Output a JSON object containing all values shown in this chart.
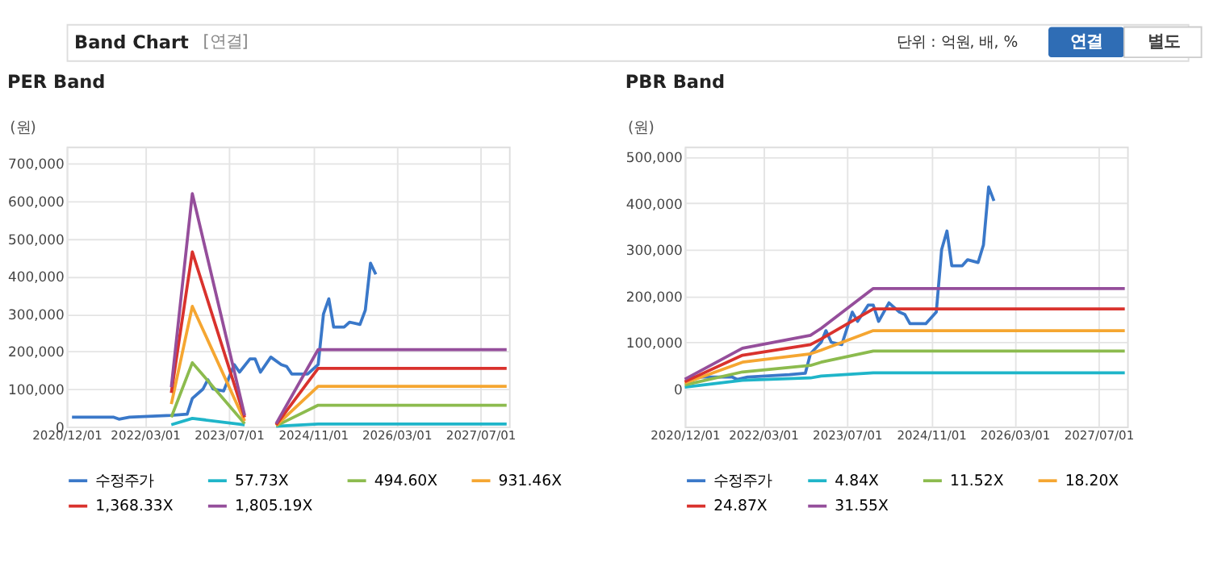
{
  "chart_data": [
    {
      "type": "line",
      "title": "PER Band",
      "ylabel": "(원)",
      "annotations": [
        "Band Chart",
        "[연결]",
        "단위 : 억원, 배, %",
        "연결",
        "별도"
      ],
      "xlim": [
        "2020-12-01",
        "2027-12-15"
      ],
      "xticks": [
        {
          "value": "2020-12-01",
          "label": "2020/12/01"
        },
        {
          "value": "2022-03-01",
          "label": "2022/03/01"
        },
        {
          "value": "2023-07-01",
          "label": "2023/07/01"
        },
        {
          "value": "2024-11-01",
          "label": "2024/11/01"
        },
        {
          "value": "2026-03-01",
          "label": "2026/03/01"
        },
        {
          "value": "2027-07-01",
          "label": "2027/07/01"
        }
      ],
      "ylim": [
        0,
        745000
      ],
      "yticks": [
        0,
        {
          "value": 100000,
          "label": "100,000"
        },
        {
          "value": 200000,
          "label": "200,000"
        },
        {
          "value": 300000,
          "label": "300,000"
        },
        {
          "value": 400000,
          "label": "400,000"
        },
        {
          "value": 500000,
          "label": "500,000"
        },
        {
          "value": 600000,
          "label": "600,000"
        },
        {
          "value": 700000,
          "label": "700,000"
        }
      ],
      "grid": true,
      "legend": "bottom",
      "series": [
        {
          "name": "수정주가",
          "color": "#3a78c9",
          "x": [
            "2021-01",
            "2021-09",
            "2021-10",
            "2021-12",
            "2022-08",
            "2022-11",
            "2022-12",
            "2023-02",
            "2023-03",
            "2023-04",
            "2023-06",
            "2023-08",
            "2023-09",
            "2023-11",
            "2023-12",
            "2024-01",
            "2024-03",
            "2024-05",
            "2024-06",
            "2024-07",
            "2024-10",
            "2024-12",
            "2025-01",
            "2025-02",
            "2025-03",
            "2025-05",
            "2025-06",
            "2025-08",
            "2025-09",
            "2025-10",
            "2025-11"
          ],
          "values": [
            25000,
            25000,
            20000,
            25000,
            30000,
            33000,
            75000,
            100000,
            125000,
            100000,
            95000,
            165000,
            145000,
            180000,
            180000,
            145000,
            185000,
            165000,
            160000,
            140000,
            140000,
            165000,
            300000,
            340000,
            265000,
            265000,
            278000,
            272000,
            310000,
            435000,
            405000
          ]
        },
        {
          "name": "57.73X",
          "color": "#1fb5c9",
          "x": [
            "2022-08",
            "2022-12",
            "2023-10",
            "2024-01",
            "2024-04",
            "2024-12",
            "2027-12"
          ],
          "values": [
            5000,
            22000,
            5000,
            null,
            1000,
            7000,
            7000
          ]
        },
        {
          "name": "494.60X",
          "color": "#8cbb4e",
          "x": [
            "2022-08",
            "2022-12",
            "2023-10",
            "2024-01",
            "2024-04",
            "2024-12",
            "2027-12"
          ],
          "values": [
            25000,
            170000,
            8000,
            null,
            2000,
            57000,
            57000
          ]
        },
        {
          "name": "931.46X",
          "color": "#f5a631",
          "x": [
            "2022-08",
            "2022-12",
            "2023-10",
            "2024-01",
            "2024-04",
            "2024-12",
            "2027-12"
          ],
          "values": [
            60000,
            320000,
            15000,
            null,
            3000,
            107000,
            107000
          ]
        },
        {
          "name": "1,368.33X",
          "color": "#d9322d",
          "x": [
            "2022-08",
            "2022-12",
            "2023-10",
            "2024-01",
            "2024-04",
            "2024-12",
            "2027-12"
          ],
          "values": [
            90000,
            465000,
            25000,
            null,
            5000,
            155000,
            155000
          ]
        },
        {
          "name": "1,805.19X",
          "color": "#954e9b",
          "x": [
            "2022-08",
            "2022-12",
            "2023-10",
            "2024-01",
            "2024-04",
            "2024-12",
            "2027-12"
          ],
          "values": [
            105000,
            620000,
            30000,
            null,
            8000,
            205000,
            205000
          ]
        }
      ]
    },
    {
      "type": "line",
      "title": "PBR Band",
      "ylabel": "(원)",
      "xlim": [
        "2020-12-01",
        "2027-12-15"
      ],
      "xticks": [
        {
          "value": "2020-12-01",
          "label": "2020/12/01"
        },
        {
          "value": "2022-03-01",
          "label": "2022/03/01"
        },
        {
          "value": "2023-07-01",
          "label": "2023/07/01"
        },
        {
          "value": "2024-11-01",
          "label": "2024/11/01"
        },
        {
          "value": "2026-03-01",
          "label": "2026/03/01"
        },
        {
          "value": "2027-07-01",
          "label": "2027/07/01"
        }
      ],
      "ylim": [
        -82000,
        522000
      ],
      "yticks": [
        0,
        {
          "value": 100000,
          "label": "100,000"
        },
        {
          "value": 200000,
          "label": "200,000"
        },
        {
          "value": 300000,
          "label": "300,000"
        },
        {
          "value": 400000,
          "label": "400,000"
        },
        {
          "value": 500000,
          "label": "500,000"
        }
      ],
      "grid": true,
      "legend": "bottom",
      "series": [
        {
          "name": "수정주가",
          "color": "#3a78c9",
          "x": [
            "2021-01",
            "2021-09",
            "2021-10",
            "2021-12",
            "2022-08",
            "2022-11",
            "2022-12",
            "2023-02",
            "2023-03",
            "2023-04",
            "2023-06",
            "2023-08",
            "2023-09",
            "2023-11",
            "2023-12",
            "2024-01",
            "2024-03",
            "2024-05",
            "2024-06",
            "2024-07",
            "2024-10",
            "2024-12",
            "2025-01",
            "2025-02",
            "2025-03",
            "2025-05",
            "2025-06",
            "2025-08",
            "2025-09",
            "2025-10",
            "2025-11"
          ],
          "values": [
            25000,
            25000,
            20000,
            25000,
            30000,
            33000,
            75000,
            100000,
            125000,
            100000,
            95000,
            165000,
            145000,
            180000,
            180000,
            145000,
            185000,
            165000,
            160000,
            140000,
            140000,
            165000,
            300000,
            340000,
            265000,
            265000,
            278000,
            272000,
            310000,
            435000,
            405000
          ]
        },
        {
          "name": "4.84X",
          "color": "#1fb5c9",
          "x": [
            "2020-12",
            "2021-11",
            "2022-12",
            "2023-02",
            "2023-12",
            "2027-12"
          ],
          "values": [
            3000,
            18000,
            23000,
            27000,
            34000,
            34000
          ]
        },
        {
          "name": "11.52X",
          "color": "#8cbb4e",
          "x": [
            "2020-12",
            "2021-11",
            "2022-12",
            "2023-02",
            "2023-12",
            "2027-12"
          ],
          "values": [
            8000,
            36000,
            50000,
            57000,
            81000,
            81000
          ]
        },
        {
          "name": "18.20X",
          "color": "#f5a631",
          "x": [
            "2020-12",
            "2021-11",
            "2022-12",
            "2023-02",
            "2023-12",
            "2027-12"
          ],
          "values": [
            12000,
            57000,
            75000,
            83000,
            125000,
            125000
          ]
        },
        {
          "name": "24.87X",
          "color": "#d9322d",
          "x": [
            "2020-12",
            "2021-11",
            "2022-12",
            "2023-02",
            "2023-12",
            "2027-12"
          ],
          "values": [
            15000,
            72000,
            95000,
            107000,
            172000,
            172000
          ]
        },
        {
          "name": "31.55X",
          "color": "#954e9b",
          "x": [
            "2020-12",
            "2021-11",
            "2022-12",
            "2023-02",
            "2023-12",
            "2027-12"
          ],
          "values": [
            20000,
            87000,
            115000,
            130000,
            216000,
            216000
          ]
        }
      ]
    }
  ]
}
